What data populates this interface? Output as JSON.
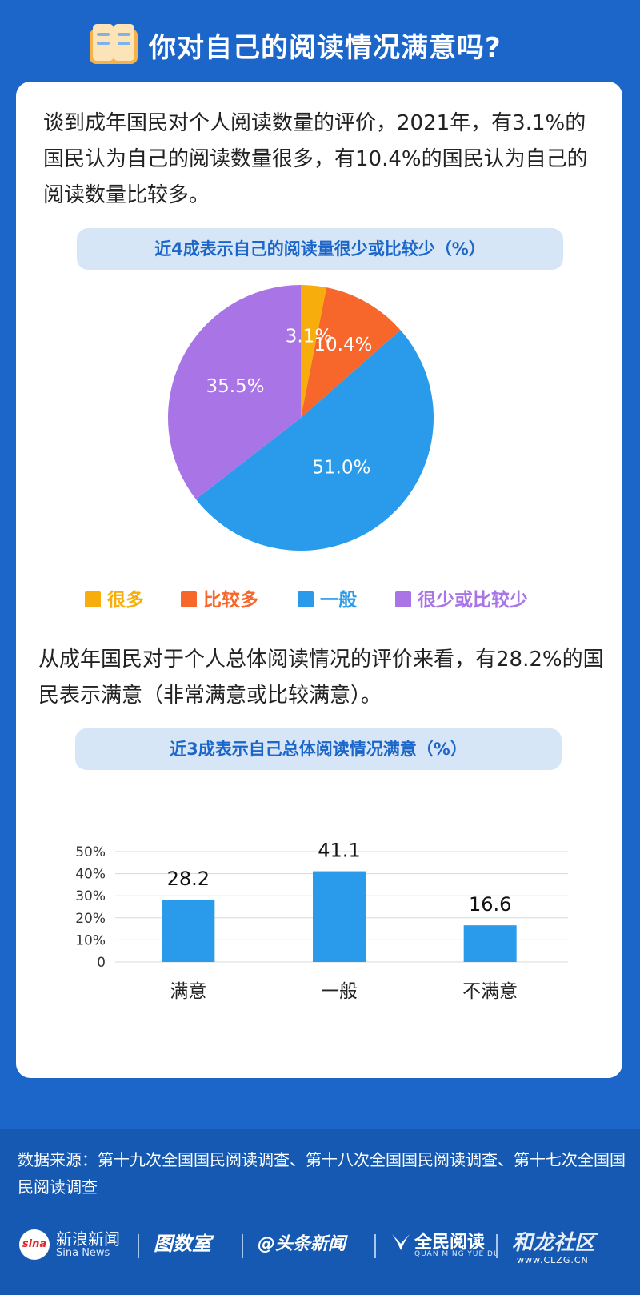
{
  "header": {
    "title": "你对自己的阅读情况满意吗?",
    "icon": "book-icon"
  },
  "intro_text": "谈到成年国民对个人阅读数量的评价，2021年，有3.1%的国民认为自己的阅读数量很多，有10.4%的国民认为自己的阅读数量比较多。",
  "pie_title": "近4成表示自己的阅读量很少或比较少（%）",
  "para2_text": "从成年国民对于个人总体阅读情况的评价来看，有28.2%的国民表示满意（非常满意或比较满意）。",
  "bar_title": "近3成表示自己总体阅读情况满意（%）",
  "chart_data": [
    {
      "type": "pie",
      "title": "近4成表示自己的阅读量很少或比较少（%）",
      "categories": [
        "很多",
        "比较多",
        "一般",
        "很少或比较少"
      ],
      "values": [
        3.1,
        10.4,
        51.0,
        35.5
      ],
      "labels": [
        "3.1%",
        "10.4%",
        "51.0%",
        "35.5%"
      ],
      "colors": [
        "#f7ad0c",
        "#f7672b",
        "#2a9bea",
        "#a874e6"
      ],
      "legend_position": "bottom"
    },
    {
      "type": "bar",
      "title": "近3成表示自己总体阅读情况满意（%）",
      "categories": [
        "满意",
        "一般",
        "不满意"
      ],
      "values": [
        28.2,
        41.1,
        16.6
      ],
      "labels": [
        "28.2",
        "41.1",
        "16.6"
      ],
      "ylim": [
        0,
        50
      ],
      "yticks": [
        "0",
        "10%",
        "20%",
        "30%",
        "40%",
        "50%"
      ],
      "grid": true,
      "color": "#2a9bea"
    }
  ],
  "footer": {
    "source": "数据来源：第十九次全国国民阅读调查、第十八次全国国民阅读调查、第十七次全国国民阅读调查",
    "logos": {
      "sina_mark": "sina",
      "sina_cn": "新浪新闻",
      "sina_en": "Sina News",
      "tushu": "图数室",
      "toutiao": "@头条新闻",
      "quanmin": "全民阅读",
      "quanmin_en": "QUAN MING YUE DU",
      "watermark": "和龙社区",
      "watermark_url": "www.CLZG.CN"
    }
  }
}
